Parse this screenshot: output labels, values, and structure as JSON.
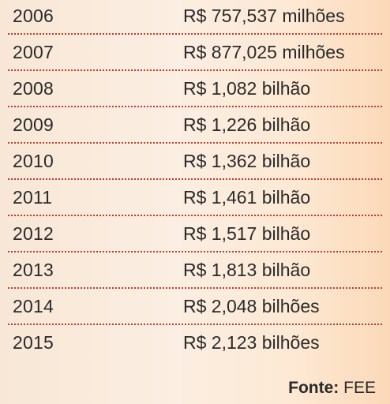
{
  "chart_data": {
    "type": "table",
    "columns": [
      "",
      ""
    ],
    "rows": [
      {
        "year": "2006",
        "value": "R$ 757,537 milhões"
      },
      {
        "year": "2007",
        "value": "R$ 877,025 milhões"
      },
      {
        "year": "2008",
        "value": "R$ 1,082 bilhão"
      },
      {
        "year": "2009",
        "value": "R$ 1,226 bilhão"
      },
      {
        "year": "2010",
        "value": "R$ 1,362 bilhão"
      },
      {
        "year": "2011",
        "value": "R$ 1,461 bilhão"
      },
      {
        "year": "2012",
        "value": "R$ 1,517 bilhão"
      },
      {
        "year": "2013",
        "value": "R$ 1,813 bilhão"
      },
      {
        "year": "2014",
        "value": "R$ 2,048 bilhões"
      },
      {
        "year": "2015",
        "value": "R$ 2,123 bilhões"
      }
    ],
    "source_label": "Fonte:",
    "source_value": "FEE"
  },
  "colors": {
    "divider": "#c0392b",
    "background_light": "#fbeee2",
    "background_warm": "#fbd9b8",
    "text": "#2a2a2a"
  }
}
